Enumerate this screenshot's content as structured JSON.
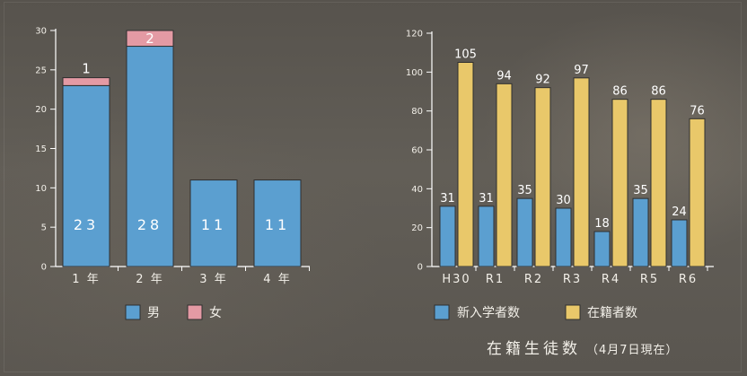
{
  "chart_data": [
    {
      "type": "bar",
      "stacked": true,
      "categories": [
        "1 年",
        "2 年",
        "3 年",
        "4 年"
      ],
      "series": [
        {
          "name": "男",
          "values": [
            23,
            28,
            11,
            11
          ],
          "color": "#5b9fd0"
        },
        {
          "name": "女",
          "values": [
            1,
            2,
            0,
            0
          ],
          "color": "#e49aa4"
        }
      ],
      "ylim": [
        0,
        30
      ],
      "yticks": [
        0,
        5,
        10,
        15,
        20,
        25,
        30
      ],
      "legend": "bottom",
      "grid": false
    },
    {
      "type": "bar",
      "categories": [
        "H30",
        "R1",
        "R2",
        "R3",
        "R4",
        "R5",
        "R6"
      ],
      "series": [
        {
          "name": "新入学者数",
          "values": [
            31,
            31,
            35,
            30,
            18,
            35,
            24
          ],
          "color": "#5b9fd0"
        },
        {
          "name": "在籍者数",
          "values": [
            105,
            94,
            92,
            97,
            86,
            86,
            76
          ],
          "color": "#e9c86a"
        }
      ],
      "ylim": [
        0,
        120
      ],
      "yticks": [
        0,
        20,
        40,
        60,
        80,
        100,
        120
      ],
      "legend": "bottom",
      "grid": false
    }
  ],
  "caption": {
    "title": "在籍生徒数",
    "note": "（4月7日現在）"
  },
  "colors": {
    "text": "#f2efe8",
    "axis": "#ffffff",
    "bar_stroke": "#2f2f2f"
  }
}
